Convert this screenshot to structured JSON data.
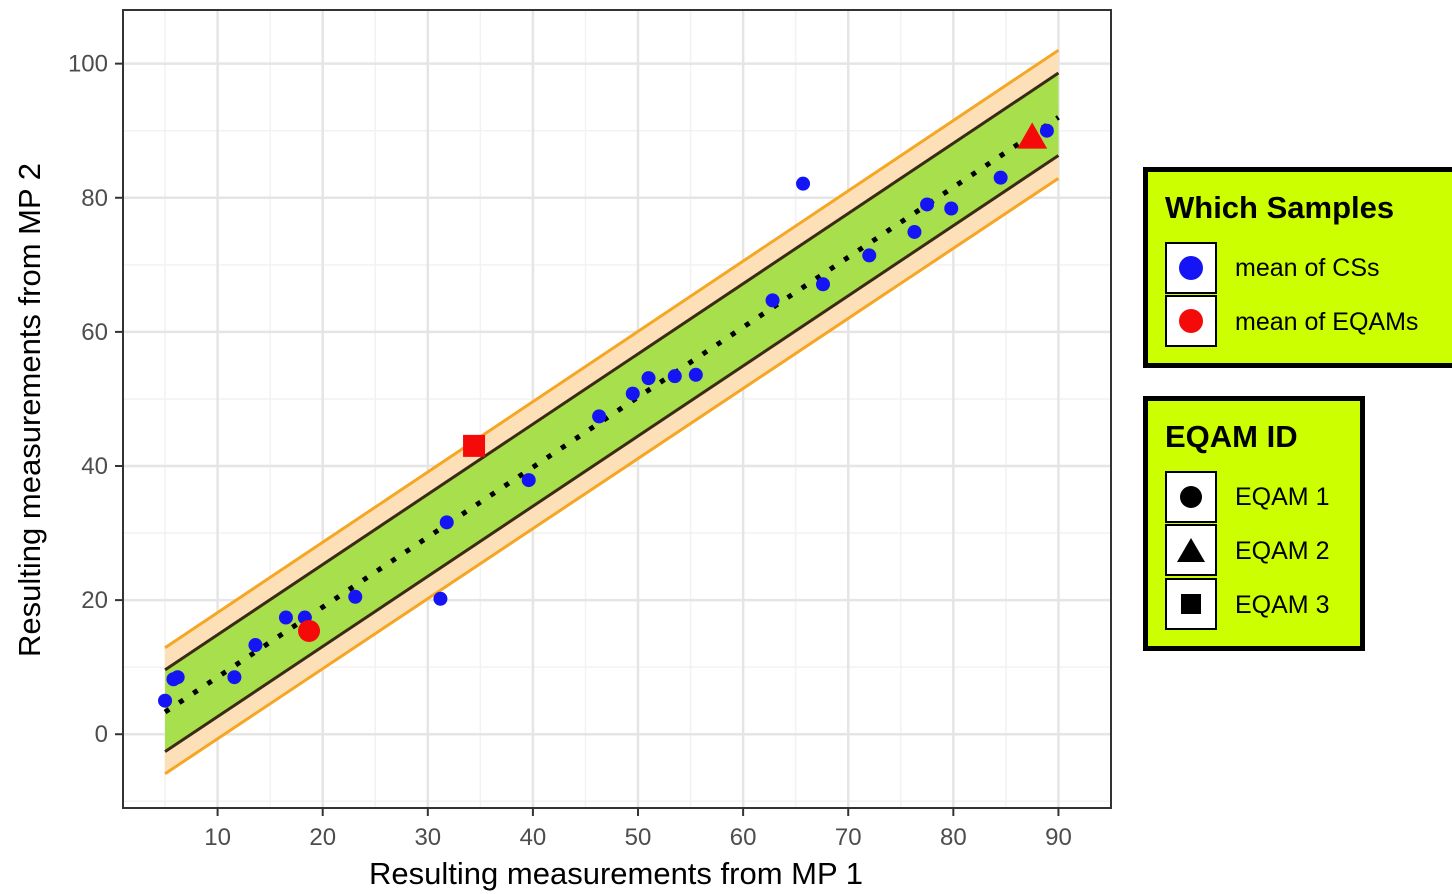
{
  "chart_data": {
    "type": "scatter",
    "xlabel": "Resulting measurements from MP 1",
    "ylabel": "Resulting measurements from MP 2",
    "xlim": [
      1,
      95
    ],
    "ylim": [
      -11,
      108
    ],
    "x_ticks": [
      10,
      20,
      30,
      40,
      50,
      60,
      70,
      80,
      90
    ],
    "y_ticks": [
      0,
      20,
      40,
      60,
      80,
      100
    ],
    "grid": true,
    "identity_line": {
      "style": "dotted",
      "color": "#000000",
      "x": [
        5,
        90
      ],
      "y": [
        3.3,
        92
      ]
    },
    "inner_band": {
      "fill": "#a8e04d",
      "line_color": "#3b2a14",
      "upper": {
        "x": [
          5,
          90
        ],
        "y": [
          9.6,
          98.6
        ]
      },
      "lower": {
        "x": [
          5,
          90
        ],
        "y": [
          -2.6,
          86.3
        ]
      }
    },
    "outer_band": {
      "fill": "#fde0b8",
      "line_color": "#f5a623",
      "upper": {
        "x": [
          5,
          90
        ],
        "y": [
          12.9,
          102.0
        ]
      },
      "lower": {
        "x": [
          5,
          90
        ],
        "y": [
          -5.9,
          82.9
        ]
      }
    },
    "series": [
      {
        "name": "mean of CSs",
        "color": "#1414f5",
        "shape": "circle",
        "x": [
          5,
          5.8,
          6.2,
          11.6,
          13.6,
          16.5,
          18.3,
          23.1,
          31.2,
          31.8,
          39.6,
          46.3,
          49.5,
          51,
          53.5,
          55.5,
          62.8,
          65.7,
          67.6,
          72,
          76.3,
          77.5,
          79.8,
          84.5,
          88.9
        ],
        "y": [
          5,
          8.2,
          8.5,
          8.5,
          13.3,
          17.4,
          17.4,
          20.5,
          20.2,
          31.6,
          37.9,
          47.4,
          50.8,
          53.1,
          53.4,
          53.6,
          64.7,
          82.1,
          67.1,
          71.4,
          74.9,
          79,
          78.4,
          83,
          90
        ]
      },
      {
        "name": "mean of EQAMs",
        "color": "#f50a0a",
        "shape": "mixed",
        "points": [
          {
            "x": 18.7,
            "y": 15.4,
            "eqam": "EQAM 1"
          },
          {
            "x": 87.5,
            "y": 89.0,
            "eqam": "EQAM 2"
          },
          {
            "x": 34.4,
            "y": 43.0,
            "eqam": "EQAM 3"
          }
        ]
      }
    ]
  },
  "legend_samples": {
    "title": "Which Samples",
    "items": [
      {
        "label": "mean of CSs",
        "color": "#1414f5"
      },
      {
        "label": "mean of EQAMs",
        "color": "#f50a0a"
      }
    ]
  },
  "legend_eqam": {
    "title": "EQAM ID",
    "items": [
      {
        "label": "EQAM 1",
        "icon": "circle-icon"
      },
      {
        "label": "EQAM 2",
        "icon": "triangle-icon"
      },
      {
        "label": "EQAM 3",
        "icon": "square-icon"
      }
    ]
  }
}
